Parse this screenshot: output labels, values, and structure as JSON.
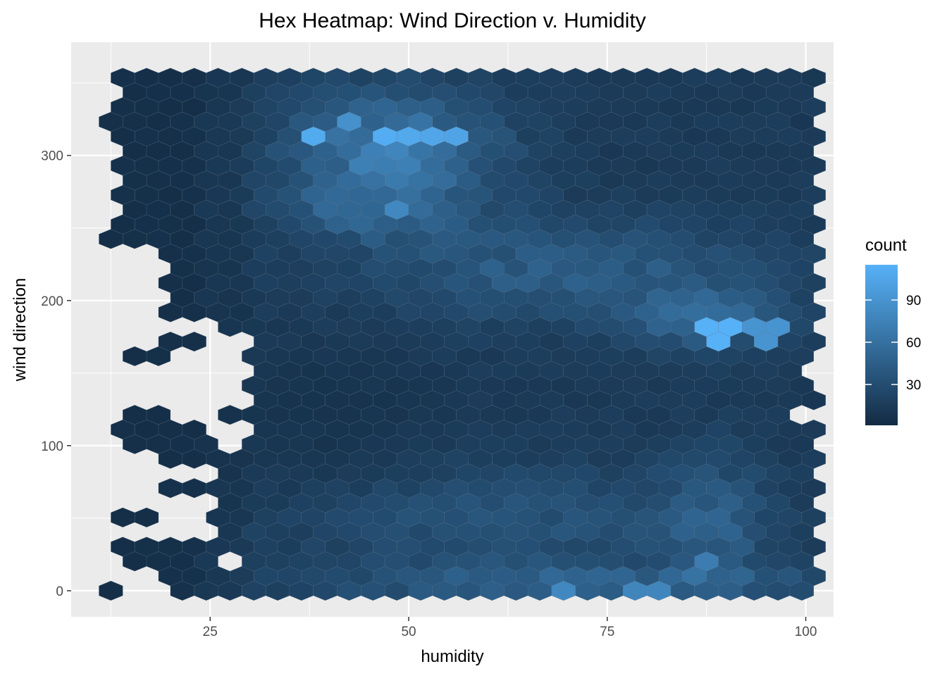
{
  "chart_data": {
    "type": "heatmap",
    "subtype": "hexbin",
    "title": "Hex Heatmap: Wind Direction v. Humidity",
    "xlabel": "humidity",
    "ylabel": "wind direction",
    "xlim": [
      7.5,
      103.5
    ],
    "ylim": [
      -18,
      378
    ],
    "x_ticks": [
      25,
      50,
      75,
      100
    ],
    "x_tick_labels": [
      "25",
      "50",
      "75",
      "100"
    ],
    "y_ticks": [
      0,
      100,
      200,
      300
    ],
    "y_tick_labels": [
      "0",
      "100",
      "200",
      "300"
    ],
    "grid": true,
    "background": "#ebebeb",
    "legend": {
      "title": "count",
      "position": "right",
      "breaks": [
        30,
        60,
        90
      ],
      "break_labels": [
        "30",
        "60",
        "90"
      ],
      "range": [
        1,
        115
      ],
      "low_color": "#132b43",
      "high_color": "#56b1f7"
    },
    "bins": {
      "x_start": 12.5,
      "x_step": 3.0,
      "y_start": 0,
      "y_step": 10.1,
      "hotspots": [
        {
          "x": 39,
          "y": 312,
          "count": 110
        },
        {
          "x": 46,
          "y": 315,
          "count": 112
        },
        {
          "x": 49,
          "y": 312,
          "count": 108
        },
        {
          "x": 53,
          "y": 312,
          "count": 106
        },
        {
          "x": 56,
          "y": 312,
          "count": 104
        },
        {
          "x": 43,
          "y": 322,
          "count": 88
        },
        {
          "x": 89,
          "y": 177,
          "count": 115
        },
        {
          "x": 95,
          "y": 177,
          "count": 90
        },
        {
          "x": 70,
          "y": 0,
          "count": 80
        },
        {
          "x": 80,
          "y": 0,
          "count": 78
        },
        {
          "x": 48,
          "y": 262,
          "count": 80
        },
        {
          "x": 88,
          "y": 20,
          "count": 70
        }
      ]
    }
  }
}
